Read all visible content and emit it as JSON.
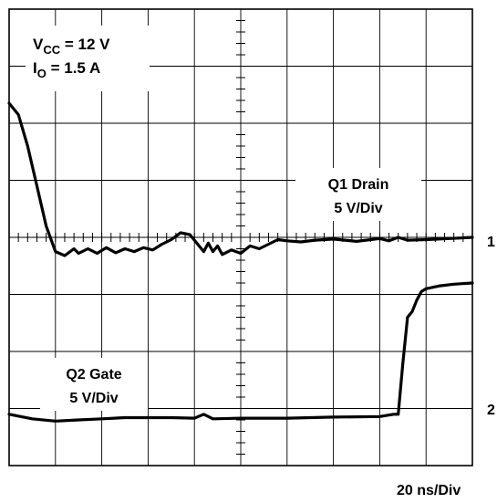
{
  "annotations": {
    "vcc_main": "V",
    "vcc_sub": "CC",
    "vcc_value": " = 12 V",
    "io_main": "I",
    "io_sub": "O",
    "io_value": " = 1.5 A",
    "ch1_title": "Q1 Drain",
    "ch1_scale": "5 V/Div",
    "ch2_title": "Q2 Gate",
    "ch2_scale": "5 V/Div",
    "ch1_marker": "1",
    "ch2_marker": "2",
    "timebase": "20 ns/Div"
  },
  "chart_data": {
    "type": "line",
    "grid": true,
    "x_divisions": 10,
    "y_divisions": 8,
    "xlim": [
      0,
      200
    ],
    "ylim": [
      -4,
      4
    ],
    "x_units": "ns",
    "y_units": "div",
    "series": [
      {
        "name": "Q1 Drain",
        "color": "#000000",
        "x": [
          0,
          4,
          8,
          12,
          16,
          20,
          24,
          28,
          30,
          34,
          38,
          42,
          46,
          50,
          54,
          58,
          62,
          66,
          70,
          74,
          78,
          82,
          84,
          86,
          88,
          90,
          92,
          96,
          100,
          104,
          108,
          112,
          116,
          120,
          126,
          132,
          140,
          150,
          160,
          164,
          168,
          172,
          180,
          190,
          200
        ],
        "y": [
          2.35,
          2.15,
          1.6,
          0.9,
          0.2,
          -0.25,
          -0.32,
          -0.2,
          -0.28,
          -0.2,
          -0.28,
          -0.18,
          -0.27,
          -0.2,
          -0.25,
          -0.18,
          -0.22,
          -0.12,
          -0.04,
          0.08,
          0.05,
          -0.15,
          -0.25,
          -0.1,
          -0.25,
          -0.15,
          -0.3,
          -0.22,
          -0.28,
          -0.15,
          -0.2,
          -0.12,
          -0.04,
          -0.06,
          -0.08,
          -0.05,
          -0.03,
          -0.07,
          -0.02,
          -0.06,
          0.0,
          -0.05,
          -0.04,
          -0.02,
          0.0
        ]
      },
      {
        "name": "Q2 Gate",
        "color": "#000000",
        "x": [
          0,
          10,
          20,
          30,
          40,
          50,
          60,
          70,
          80,
          84,
          88,
          100,
          120,
          140,
          160,
          166,
          168,
          170,
          172,
          174,
          176,
          178,
          180,
          186,
          192,
          200
        ],
        "y": [
          -3.1,
          -3.18,
          -3.22,
          -3.2,
          -3.18,
          -3.16,
          -3.16,
          -3.16,
          -3.17,
          -3.1,
          -3.18,
          -3.17,
          -3.17,
          -3.15,
          -3.14,
          -3.1,
          -3.1,
          -2.2,
          -1.4,
          -1.3,
          -1.1,
          -0.95,
          -0.9,
          -0.85,
          -0.82,
          -0.8
        ]
      }
    ]
  }
}
